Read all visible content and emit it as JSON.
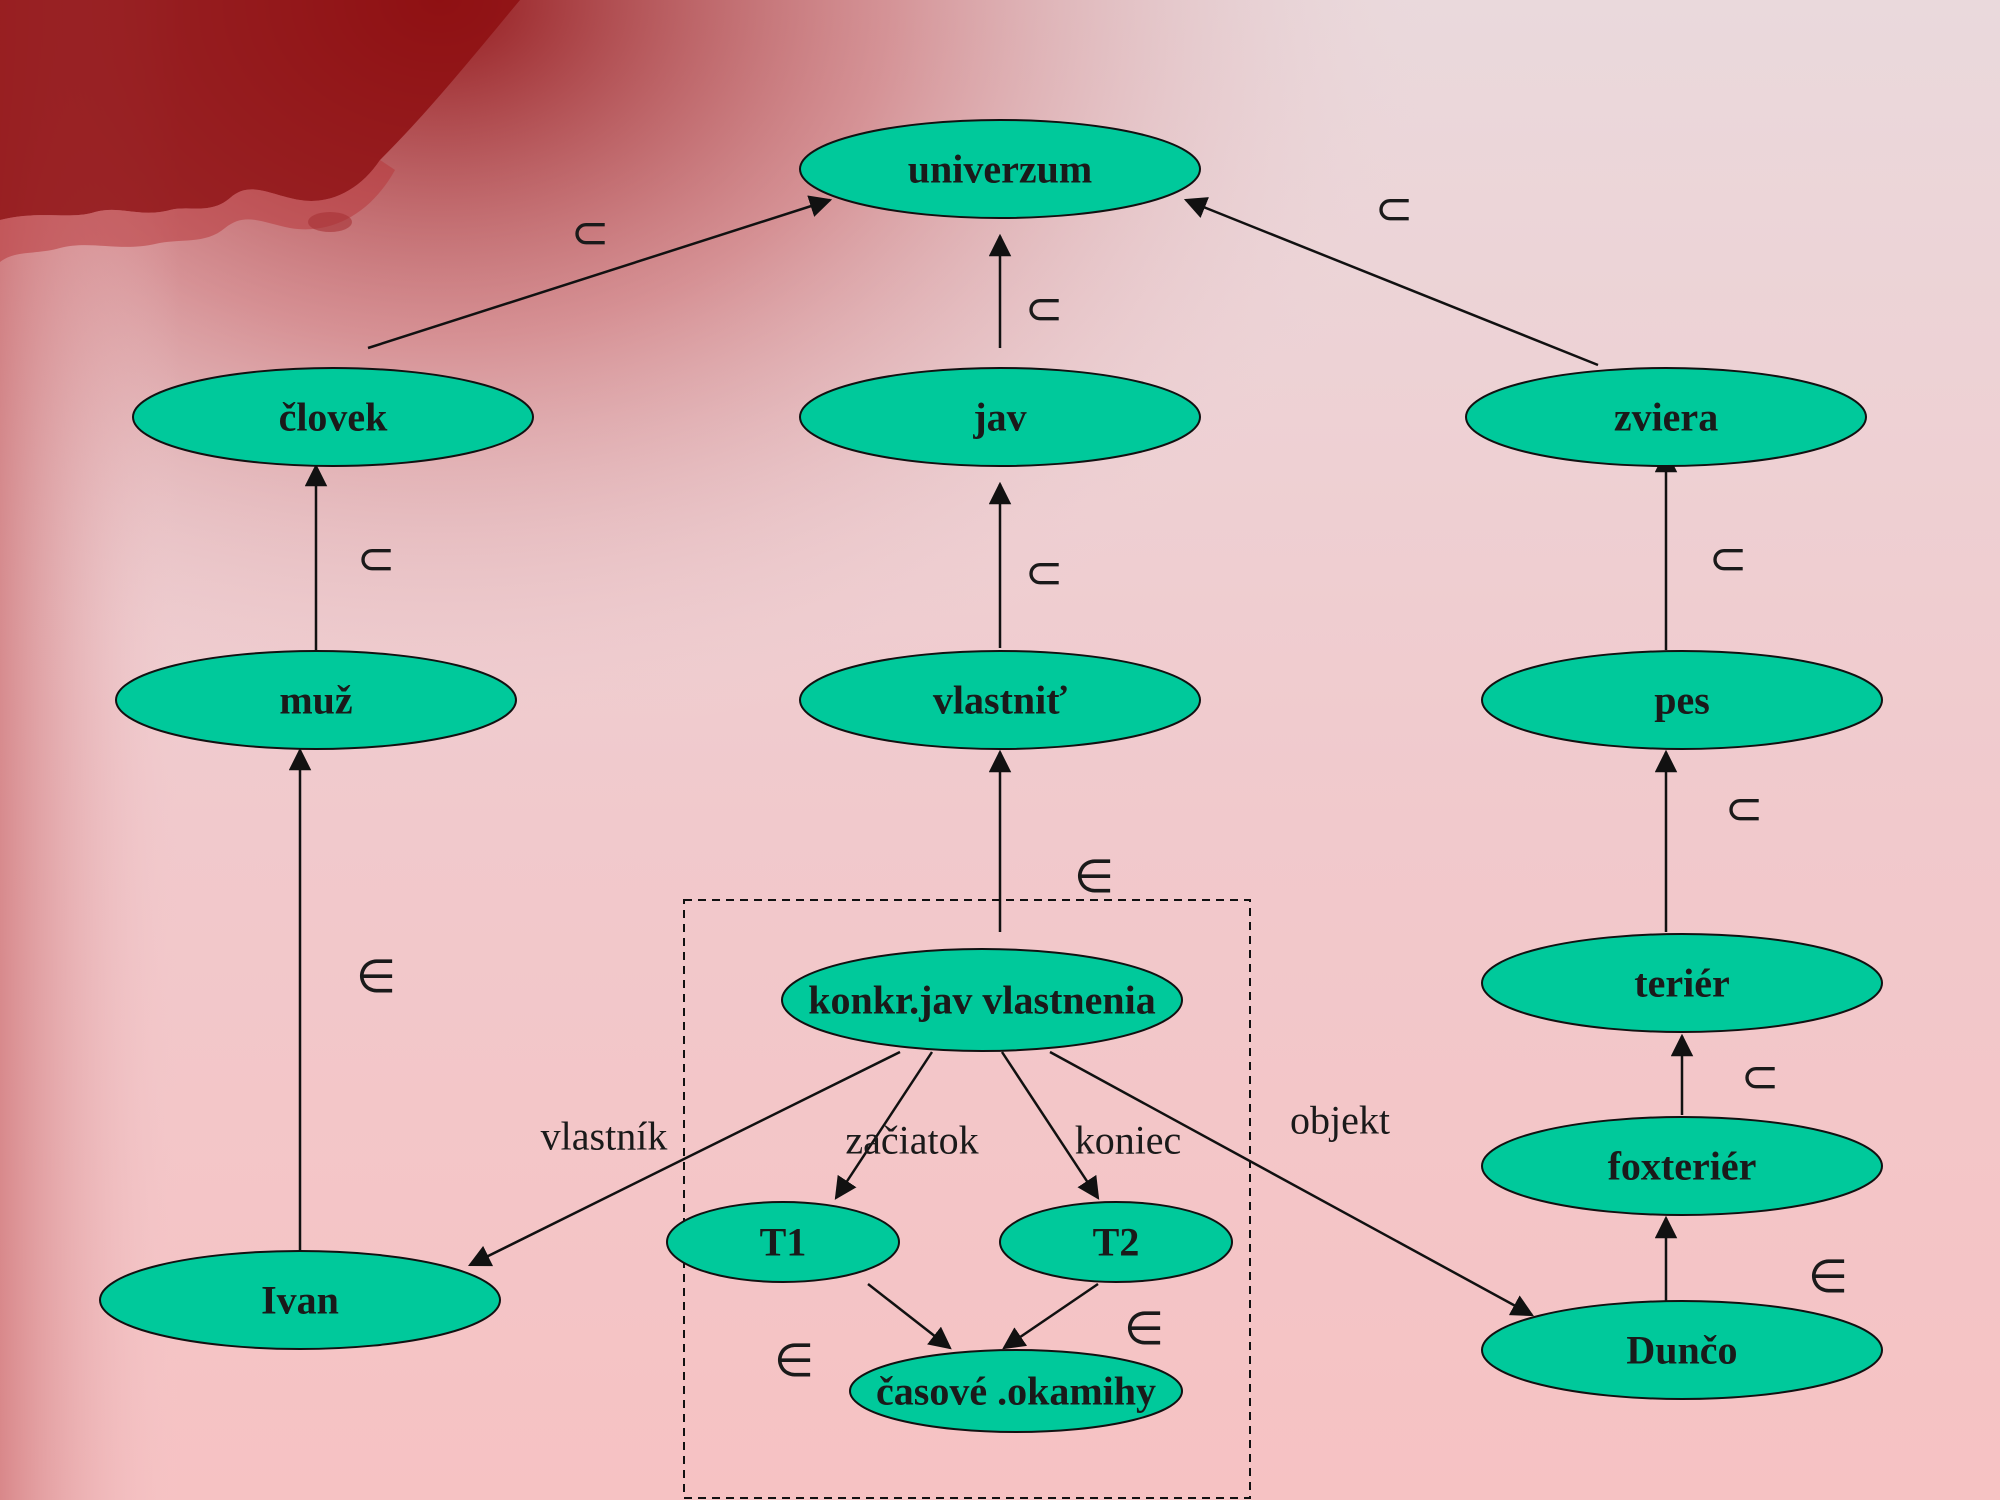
{
  "colors": {
    "node_fill": "#00c99b",
    "node_stroke": "#111111",
    "background": "#f1c9cc",
    "accent_red": "#8e0f12"
  },
  "nodes": [
    {
      "id": "univerzum",
      "label": "univerzum"
    },
    {
      "id": "clovek",
      "label": "človek"
    },
    {
      "id": "jav",
      "label": "jav"
    },
    {
      "id": "zviera",
      "label": "zviera"
    },
    {
      "id": "muz",
      "label": "muž"
    },
    {
      "id": "vlastnit",
      "label": "vlastniť"
    },
    {
      "id": "pes",
      "label": "pes"
    },
    {
      "id": "konkr",
      "label": "konkr.jav vlastnenia"
    },
    {
      "id": "terier",
      "label": "teriér"
    },
    {
      "id": "foxterier",
      "label": "foxteriér"
    },
    {
      "id": "t1",
      "label": "T1"
    },
    {
      "id": "t2",
      "label": "T2"
    },
    {
      "id": "ivan",
      "label": "Ivan"
    },
    {
      "id": "dunco",
      "label": "Dunčo"
    },
    {
      "id": "casove",
      "label": "časové .okamihy"
    }
  ],
  "edges": [
    {
      "from": "clovek",
      "to": "univerzum",
      "symbol": "⊂"
    },
    {
      "from": "jav",
      "to": "univerzum",
      "symbol": "⊂"
    },
    {
      "from": "zviera",
      "to": "univerzum",
      "symbol": "⊂"
    },
    {
      "from": "muz",
      "to": "clovek",
      "symbol": "⊂"
    },
    {
      "from": "vlastnit",
      "to": "jav",
      "symbol": "⊂"
    },
    {
      "from": "pes",
      "to": "zviera",
      "symbol": "⊂"
    },
    {
      "from": "ivan",
      "to": "muz",
      "symbol": "∈"
    },
    {
      "from": "konkr",
      "to": "vlastnit",
      "symbol": "∈"
    },
    {
      "from": "terier",
      "to": "pes",
      "symbol": "⊂"
    },
    {
      "from": "foxterier",
      "to": "terier",
      "symbol": "⊂"
    },
    {
      "from": "dunco",
      "to": "foxterier",
      "symbol": "∈"
    },
    {
      "from": "konkr",
      "to": "ivan",
      "label": "vlastník"
    },
    {
      "from": "konkr",
      "to": "t1",
      "label": "začiatok"
    },
    {
      "from": "konkr",
      "to": "t2",
      "label": "koniec"
    },
    {
      "from": "konkr",
      "to": "dunco",
      "label": "objekt"
    },
    {
      "from": "t1",
      "to": "casove",
      "symbol": "∈"
    },
    {
      "from": "t2",
      "to": "casove",
      "symbol": "∈"
    }
  ]
}
